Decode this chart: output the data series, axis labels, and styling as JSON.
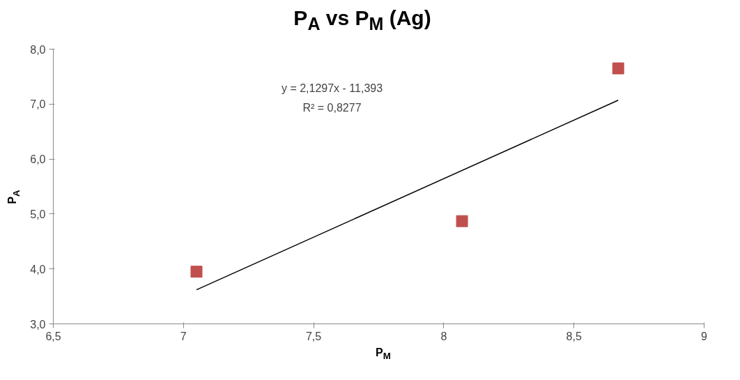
{
  "chart_data": {
    "type": "scatter",
    "title": "P$_{A}$ vs P$_{M}$ (Ag)",
    "xlabel": "P$_{M}$",
    "ylabel": "P$_{A}$",
    "annotations": [
      "y = 2,1297x - 11,393",
      "R² = 0,8277"
    ],
    "series": [
      {
        "color": "#c0504d",
        "marker": "square",
        "x": [
          7.05,
          8.07,
          8.67
        ],
        "values": [
          3.95,
          4.87,
          7.65
        ]
      },
      {
        "type": "line",
        "color": "#000000",
        "line_style": "solid",
        "x": [
          7.05,
          8.67
        ],
        "values": [
          3.62,
          7.07
        ]
      }
    ],
    "xlim": [
      6.5,
      9
    ],
    "xticks": [
      {
        "value": 6.5,
        "label": "6,5"
      },
      7,
      {
        "value": 7.5,
        "label": "7,5"
      },
      8,
      {
        "value": 8.5,
        "label": "8,5"
      },
      9
    ],
    "ylim": [
      3,
      8
    ],
    "yticks": [
      {
        "value": 3,
        "label": "3,0"
      },
      {
        "value": 4,
        "label": "4,0"
      },
      {
        "value": 5,
        "label": "5,0"
      },
      {
        "value": 6,
        "label": "6,0"
      },
      {
        "value": 7,
        "label": "7,0"
      },
      {
        "value": 8,
        "label": "8,0"
      }
    ],
    "grid": false
  }
}
